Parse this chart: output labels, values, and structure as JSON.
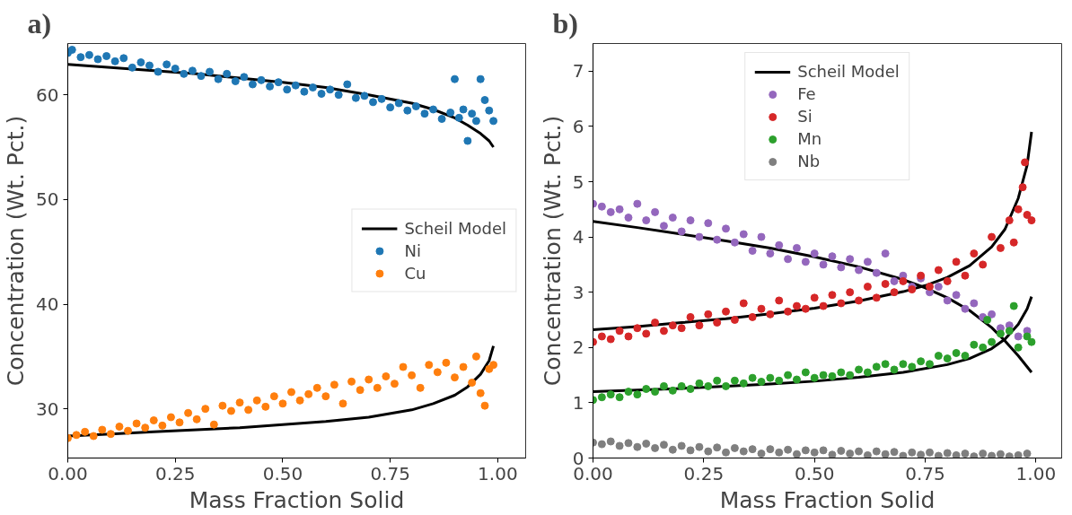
{
  "chart_data": [
    {
      "type": "scatter",
      "title": "a)",
      "xlabel": "Mass Fraction Solid",
      "ylabel": "Concentration (Wt. Pct.)",
      "xlim": [
        0,
        1.065
      ],
      "ylim": [
        25.3,
        64.9
      ],
      "xticks": [
        {
          "value": 0,
          "label": "0.00"
        },
        {
          "value": 0.25,
          "label": "0.25"
        },
        {
          "value": 0.5,
          "label": "0.50"
        },
        {
          "value": 0.75,
          "label": "0.75"
        },
        {
          "value": 1,
          "label": "1.00"
        }
      ],
      "yticks": [
        30,
        40,
        50,
        60
      ],
      "grid": false,
      "legend": "right",
      "line_style": "solid",
      "series": [
        {
          "name": "Scheil Model",
          "type": "line",
          "color": "#000000",
          "x": [
            0,
            0.1,
            0.2,
            0.3,
            0.4,
            0.5,
            0.6,
            0.7,
            0.8,
            0.85,
            0.9,
            0.93,
            0.96,
            0.98,
            0.99
          ],
          "values": [
            62.9,
            62.6,
            62.3,
            62.0,
            61.6,
            61.2,
            60.7,
            60.0,
            59.2,
            58.6,
            57.8,
            57.1,
            56.3,
            55.6,
            55.0
          ]
        },
        {
          "type": "line",
          "color": "#000000",
          "x": [
            0,
            0.1,
            0.2,
            0.3,
            0.4,
            0.5,
            0.6,
            0.7,
            0.8,
            0.85,
            0.9,
            0.93,
            0.96,
            0.98,
            0.99
          ],
          "values": [
            27.4,
            27.6,
            27.8,
            28.0,
            28.2,
            28.5,
            28.8,
            29.2,
            29.9,
            30.5,
            31.3,
            32.1,
            33.3,
            34.6,
            36.0
          ]
        },
        {
          "name": "Ni",
          "marker": "circle",
          "color": "#1f77b4",
          "x": [
            0,
            0.01,
            0.03,
            0.05,
            0.07,
            0.09,
            0.11,
            0.13,
            0.15,
            0.17,
            0.19,
            0.21,
            0.23,
            0.25,
            0.27,
            0.29,
            0.31,
            0.33,
            0.35,
            0.37,
            0.39,
            0.41,
            0.43,
            0.45,
            0.47,
            0.49,
            0.51,
            0.53,
            0.55,
            0.57,
            0.59,
            0.61,
            0.63,
            0.65,
            0.67,
            0.69,
            0.71,
            0.73,
            0.75,
            0.77,
            0.79,
            0.81,
            0.83,
            0.85,
            0.87,
            0.89,
            0.9,
            0.91,
            0.92,
            0.93,
            0.94,
            0.95,
            0.96,
            0.97,
            0.98,
            0.99
          ],
          "values": [
            64.0,
            64.3,
            63.6,
            63.8,
            63.4,
            63.7,
            63.2,
            63.5,
            62.6,
            63.1,
            62.8,
            62.2,
            62.9,
            62.5,
            62.0,
            62.3,
            61.8,
            62.2,
            61.5,
            62.0,
            61.3,
            61.7,
            61.0,
            61.4,
            60.8,
            61.2,
            60.5,
            60.9,
            60.3,
            60.7,
            60.1,
            60.5,
            60.0,
            61.0,
            59.7,
            59.9,
            59.3,
            59.6,
            58.8,
            59.2,
            58.5,
            58.9,
            58.2,
            58.6,
            57.7,
            58.3,
            61.5,
            57.8,
            58.6,
            55.6,
            58.2,
            57.5,
            61.5,
            59.5,
            58.5,
            57.5
          ]
        },
        {
          "name": "Cu",
          "marker": "circle",
          "color": "#ff7f0e",
          "x": [
            0,
            0.02,
            0.04,
            0.06,
            0.08,
            0.1,
            0.12,
            0.14,
            0.16,
            0.18,
            0.2,
            0.22,
            0.24,
            0.26,
            0.28,
            0.3,
            0.32,
            0.34,
            0.36,
            0.38,
            0.4,
            0.42,
            0.44,
            0.46,
            0.48,
            0.5,
            0.52,
            0.54,
            0.56,
            0.58,
            0.6,
            0.62,
            0.64,
            0.66,
            0.68,
            0.7,
            0.72,
            0.74,
            0.76,
            0.78,
            0.8,
            0.82,
            0.84,
            0.86,
            0.88,
            0.9,
            0.92,
            0.94,
            0.95,
            0.96,
            0.97,
            0.98,
            0.99
          ],
          "values": [
            27.2,
            27.5,
            27.8,
            27.4,
            28.0,
            27.6,
            28.3,
            27.9,
            28.6,
            28.2,
            28.9,
            28.4,
            29.2,
            28.7,
            29.6,
            29.0,
            30.0,
            28.5,
            30.3,
            29.8,
            30.6,
            29.9,
            30.8,
            30.2,
            31.2,
            30.5,
            31.6,
            30.8,
            31.4,
            32.0,
            31.2,
            32.3,
            30.5,
            32.6,
            31.8,
            32.8,
            32.0,
            33.1,
            32.4,
            34.0,
            33.2,
            32.0,
            34.2,
            33.5,
            34.4,
            33.0,
            34.0,
            32.5,
            35.0,
            31.5,
            30.3,
            33.8,
            34.2
          ]
        }
      ]
    },
    {
      "type": "scatter",
      "title": "b)",
      "xlabel": "Mass Fraction Solid",
      "ylabel": "Concentration (Wt. Pct.)",
      "xlim": [
        0,
        1.058
      ],
      "ylim": [
        0,
        7.5
      ],
      "xticks": [
        {
          "value": 0,
          "label": "0.00"
        },
        {
          "value": 0.25,
          "label": "0.25"
        },
        {
          "value": 0.5,
          "label": "0.50"
        },
        {
          "value": 0.75,
          "label": "0.75"
        },
        {
          "value": 1,
          "label": "1.00"
        }
      ],
      "yticks": [
        0,
        1,
        2,
        3,
        4,
        5,
        6,
        7
      ],
      "grid": false,
      "legend": "top",
      "line_style": "solid",
      "series": [
        {
          "name": "Scheil Model",
          "type": "line",
          "color": "#000000",
          "x": [
            0,
            0.1,
            0.2,
            0.3,
            0.4,
            0.5,
            0.6,
            0.7,
            0.75,
            0.8,
            0.85,
            0.9,
            0.93,
            0.96,
            0.99
          ],
          "values": [
            4.28,
            4.17,
            4.05,
            3.93,
            3.8,
            3.64,
            3.46,
            3.23,
            3.08,
            2.9,
            2.67,
            2.36,
            2.12,
            1.85,
            1.55
          ]
        },
        {
          "type": "line",
          "color": "#000000",
          "x": [
            0,
            0.1,
            0.2,
            0.3,
            0.4,
            0.5,
            0.6,
            0.7,
            0.75,
            0.8,
            0.85,
            0.9,
            0.93,
            0.96,
            0.98,
            0.99
          ],
          "values": [
            2.32,
            2.38,
            2.45,
            2.52,
            2.61,
            2.71,
            2.84,
            3.01,
            3.12,
            3.27,
            3.48,
            3.82,
            4.14,
            4.7,
            5.3,
            5.9
          ]
        },
        {
          "type": "line",
          "color": "#000000",
          "x": [
            0,
            0.1,
            0.2,
            0.3,
            0.4,
            0.5,
            0.6,
            0.7,
            0.8,
            0.85,
            0.9,
            0.93,
            0.96,
            0.98,
            0.99
          ],
          "values": [
            1.2,
            1.23,
            1.26,
            1.3,
            1.34,
            1.39,
            1.46,
            1.55,
            1.69,
            1.8,
            1.98,
            2.15,
            2.42,
            2.7,
            2.92
          ]
        },
        {
          "name": "Fe",
          "marker": "circle",
          "color": "#9467bd",
          "x": [
            0,
            0.02,
            0.04,
            0.06,
            0.08,
            0.1,
            0.12,
            0.14,
            0.16,
            0.18,
            0.2,
            0.22,
            0.24,
            0.26,
            0.28,
            0.3,
            0.32,
            0.34,
            0.36,
            0.38,
            0.4,
            0.42,
            0.44,
            0.46,
            0.48,
            0.5,
            0.52,
            0.54,
            0.56,
            0.58,
            0.6,
            0.62,
            0.64,
            0.66,
            0.68,
            0.7,
            0.72,
            0.74,
            0.76,
            0.78,
            0.8,
            0.82,
            0.84,
            0.86,
            0.88,
            0.9,
            0.92,
            0.94,
            0.96,
            0.98
          ],
          "values": [
            4.6,
            4.55,
            4.45,
            4.5,
            4.35,
            4.6,
            4.3,
            4.45,
            4.2,
            4.35,
            4.1,
            4.3,
            4.0,
            4.25,
            3.95,
            4.15,
            3.9,
            4.05,
            3.75,
            4.0,
            3.7,
            3.85,
            3.6,
            3.8,
            3.55,
            3.7,
            3.5,
            3.65,
            3.45,
            3.6,
            3.4,
            3.55,
            3.35,
            3.7,
            3.2,
            3.3,
            3.1,
            3.25,
            3.0,
            3.1,
            2.85,
            2.95,
            2.7,
            2.8,
            2.55,
            2.6,
            2.35,
            2.4,
            2.2,
            2.3
          ]
        },
        {
          "name": "Si",
          "marker": "circle",
          "color": "#d62728",
          "x": [
            0,
            0.02,
            0.04,
            0.06,
            0.08,
            0.1,
            0.12,
            0.14,
            0.16,
            0.18,
            0.2,
            0.22,
            0.24,
            0.26,
            0.28,
            0.3,
            0.32,
            0.34,
            0.36,
            0.38,
            0.4,
            0.42,
            0.44,
            0.46,
            0.48,
            0.5,
            0.52,
            0.54,
            0.56,
            0.58,
            0.6,
            0.62,
            0.64,
            0.66,
            0.68,
            0.7,
            0.72,
            0.74,
            0.76,
            0.78,
            0.8,
            0.82,
            0.84,
            0.86,
            0.88,
            0.9,
            0.92,
            0.94,
            0.95,
            0.96,
            0.97,
            0.975,
            0.98,
            0.99
          ],
          "values": [
            2.1,
            2.2,
            2.15,
            2.3,
            2.2,
            2.35,
            2.25,
            2.45,
            2.3,
            2.4,
            2.35,
            2.55,
            2.4,
            2.6,
            2.45,
            2.65,
            2.5,
            2.8,
            2.55,
            2.7,
            2.6,
            2.85,
            2.65,
            2.75,
            2.7,
            2.9,
            2.75,
            2.95,
            2.8,
            3.0,
            2.85,
            3.1,
            2.9,
            3.15,
            3.0,
            3.2,
            3.05,
            3.3,
            3.1,
            3.4,
            3.2,
            3.55,
            3.3,
            3.7,
            3.5,
            4.0,
            3.8,
            4.3,
            3.9,
            4.5,
            4.9,
            5.35,
            4.4,
            4.3
          ]
        },
        {
          "name": "Mn",
          "marker": "circle",
          "color": "#2ca02c",
          "x": [
            0,
            0.02,
            0.04,
            0.06,
            0.08,
            0.1,
            0.12,
            0.14,
            0.16,
            0.18,
            0.2,
            0.22,
            0.24,
            0.26,
            0.28,
            0.3,
            0.32,
            0.34,
            0.36,
            0.38,
            0.4,
            0.42,
            0.44,
            0.46,
            0.48,
            0.5,
            0.52,
            0.54,
            0.56,
            0.58,
            0.6,
            0.62,
            0.64,
            0.66,
            0.68,
            0.7,
            0.72,
            0.74,
            0.76,
            0.78,
            0.8,
            0.82,
            0.84,
            0.86,
            0.88,
            0.89,
            0.9,
            0.92,
            0.94,
            0.95,
            0.96,
            0.98,
            0.99
          ],
          "values": [
            1.05,
            1.1,
            1.15,
            1.1,
            1.2,
            1.15,
            1.25,
            1.2,
            1.3,
            1.22,
            1.3,
            1.25,
            1.35,
            1.3,
            1.4,
            1.3,
            1.4,
            1.35,
            1.45,
            1.38,
            1.45,
            1.4,
            1.5,
            1.42,
            1.55,
            1.45,
            1.5,
            1.48,
            1.55,
            1.5,
            1.6,
            1.55,
            1.65,
            1.7,
            1.6,
            1.7,
            1.65,
            1.75,
            1.7,
            1.85,
            1.8,
            1.9,
            1.85,
            2.05,
            2.0,
            2.5,
            2.1,
            2.25,
            2.3,
            2.75,
            2.0,
            2.2,
            2.1
          ]
        },
        {
          "name": "Nb",
          "marker": "circle",
          "color": "#7f7f7f",
          "x": [
            0,
            0.02,
            0.04,
            0.06,
            0.08,
            0.1,
            0.12,
            0.14,
            0.16,
            0.18,
            0.2,
            0.22,
            0.24,
            0.26,
            0.28,
            0.3,
            0.32,
            0.34,
            0.36,
            0.38,
            0.4,
            0.42,
            0.44,
            0.46,
            0.48,
            0.5,
            0.52,
            0.54,
            0.56,
            0.58,
            0.6,
            0.62,
            0.64,
            0.66,
            0.68,
            0.7,
            0.72,
            0.74,
            0.76,
            0.78,
            0.8,
            0.82,
            0.84,
            0.86,
            0.88,
            0.9,
            0.92,
            0.94,
            0.96,
            0.98
          ],
          "values": [
            0.28,
            0.25,
            0.3,
            0.22,
            0.27,
            0.2,
            0.26,
            0.18,
            0.24,
            0.15,
            0.22,
            0.14,
            0.2,
            0.12,
            0.19,
            0.1,
            0.18,
            0.12,
            0.16,
            0.08,
            0.16,
            0.1,
            0.15,
            0.07,
            0.14,
            0.1,
            0.14,
            0.06,
            0.13,
            0.08,
            0.12,
            0.05,
            0.12,
            0.07,
            0.11,
            0.04,
            0.1,
            0.06,
            0.1,
            0.04,
            0.09,
            0.05,
            0.08,
            0.03,
            0.08,
            0.04,
            0.07,
            0.03,
            0.05,
            0.08
          ]
        }
      ]
    }
  ]
}
